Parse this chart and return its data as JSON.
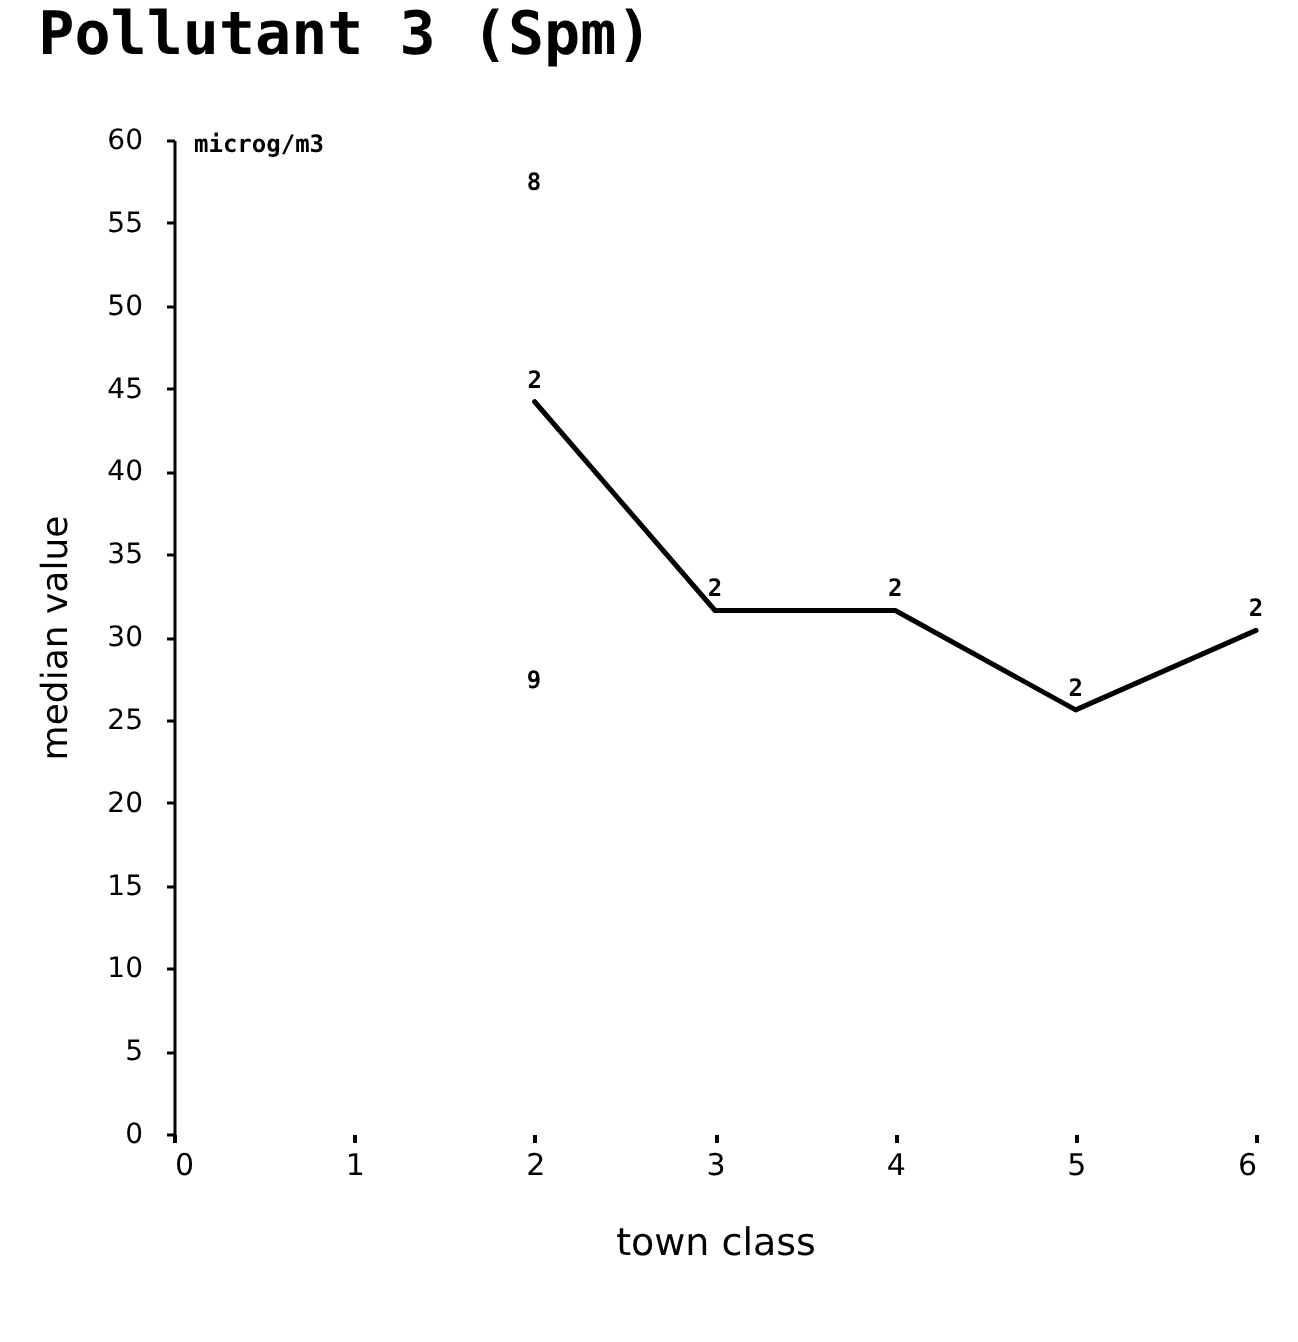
{
  "chart_data": {
    "type": "line",
    "title": "Pollutant 3 (Spm)",
    "xlabel": "town class",
    "ylabel": "median value",
    "x": [
      2,
      3,
      4,
      5,
      6
    ],
    "series": [
      {
        "color": "#000000",
        "values": [
          44.2,
          31.6,
          31.6,
          25.6,
          30.4
        ]
      }
    ],
    "xlim": [
      0,
      6
    ],
    "xticks": [
      0,
      1,
      2,
      3,
      4,
      5,
      6
    ],
    "ylim": [
      0,
      60
    ],
    "yticks": [
      0,
      5,
      10,
      15,
      20,
      25,
      30,
      35,
      40,
      45,
      50,
      55,
      60
    ],
    "grid": false,
    "legend": false,
    "marker": "none",
    "line_style": "solid",
    "annotations": [
      "microg/m3",
      {
        "text": "2",
        "x": 2,
        "y": 44.2
      },
      {
        "text": "2",
        "x": 3,
        "y": 31.6
      },
      {
        "text": "2",
        "x": 4,
        "y": 31.6
      },
      {
        "text": "2",
        "x": 5,
        "y": 25.6
      },
      {
        "text": "2",
        "x": 6,
        "y": 30.4
      },
      "9",
      "8"
    ]
  }
}
